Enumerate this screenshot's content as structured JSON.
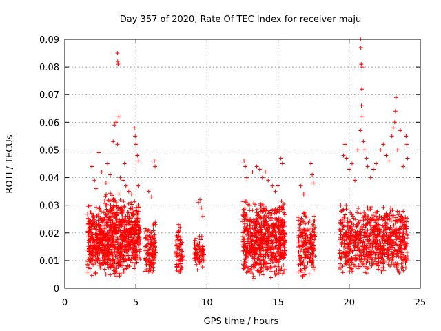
{
  "chart_data": {
    "type": "scatter",
    "title": "Day 357 of 2020, Rate Of TEC Index for receiver maju",
    "xlabel": "GPS time / hours",
    "ylabel": "ROTI / TECUs",
    "xlim": [
      0,
      25
    ],
    "ylim": [
      0,
      0.09
    ],
    "xticks": [
      0,
      5,
      10,
      15,
      20,
      25
    ],
    "yticks": [
      0,
      0.01,
      0.02,
      0.03,
      0.04,
      0.05,
      0.06,
      0.07,
      0.08,
      0.09
    ],
    "xtick_labels": [
      "0",
      "5",
      "10",
      "15",
      "20",
      "25"
    ],
    "ytick_labels": [
      "0",
      "0.01",
      "0.02",
      "0.03",
      "0.04",
      "0.05",
      "0.06",
      "0.07",
      "0.08",
      "0.09"
    ],
    "grid": true,
    "marker": "+",
    "marker_color": "#ff0000",
    "clusters": [
      {
        "x_range": [
          1.6,
          2.8
        ],
        "y_range": [
          0.004,
          0.03
        ],
        "count": 300
      },
      {
        "x_range": [
          2.8,
          4.2
        ],
        "y_range": [
          0.003,
          0.035
        ],
        "count": 400
      },
      {
        "x_range": [
          4.2,
          5.3
        ],
        "y_range": [
          0.005,
          0.032
        ],
        "count": 250
      },
      {
        "x_range": [
          5.6,
          6.4
        ],
        "y_range": [
          0.003,
          0.025
        ],
        "count": 120
      },
      {
        "x_range": [
          7.8,
          8.3
        ],
        "y_range": [
          0.003,
          0.022
        ],
        "count": 60
      },
      {
        "x_range": [
          9.1,
          9.8
        ],
        "y_range": [
          0.006,
          0.02
        ],
        "count": 70
      },
      {
        "x_range": [
          12.5,
          15.5
        ],
        "y_range": [
          0.003,
          0.032
        ],
        "count": 700
      },
      {
        "x_range": [
          16.4,
          17.6
        ],
        "y_range": [
          0.003,
          0.028
        ],
        "count": 200
      },
      {
        "x_range": [
          19.3,
          24.1
        ],
        "y_range": [
          0.004,
          0.03
        ],
        "count": 800
      }
    ],
    "peaks": [
      {
        "x": 1.9,
        "y": 0.044
      },
      {
        "x": 2.1,
        "y": 0.039
      },
      {
        "x": 2.2,
        "y": 0.036
      },
      {
        "x": 2.4,
        "y": 0.049
      },
      {
        "x": 2.6,
        "y": 0.042
      },
      {
        "x": 2.9,
        "y": 0.038
      },
      {
        "x": 3.0,
        "y": 0.045
      },
      {
        "x": 3.2,
        "y": 0.041
      },
      {
        "x": 3.4,
        "y": 0.053
      },
      {
        "x": 3.5,
        "y": 0.059
      },
      {
        "x": 3.6,
        "y": 0.06
      },
      {
        "x": 3.7,
        "y": 0.085
      },
      {
        "x": 3.72,
        "y": 0.082
      },
      {
        "x": 3.75,
        "y": 0.081
      },
      {
        "x": 3.8,
        "y": 0.062
      },
      {
        "x": 3.7,
        "y": 0.052
      },
      {
        "x": 3.9,
        "y": 0.04
      },
      {
        "x": 4.1,
        "y": 0.039
      },
      {
        "x": 4.2,
        "y": 0.045
      },
      {
        "x": 4.3,
        "y": 0.037
      },
      {
        "x": 4.5,
        "y": 0.035
      },
      {
        "x": 4.7,
        "y": 0.034
      },
      {
        "x": 4.9,
        "y": 0.058
      },
      {
        "x": 4.95,
        "y": 0.055
      },
      {
        "x": 5.0,
        "y": 0.052
      },
      {
        "x": 5.1,
        "y": 0.048
      },
      {
        "x": 5.2,
        "y": 0.046
      },
      {
        "x": 5.15,
        "y": 0.037
      },
      {
        "x": 5.9,
        "y": 0.035
      },
      {
        "x": 6.1,
        "y": 0.033
      },
      {
        "x": 6.3,
        "y": 0.046
      },
      {
        "x": 6.35,
        "y": 0.044
      },
      {
        "x": 8.0,
        "y": 0.023
      },
      {
        "x": 8.1,
        "y": 0.022
      },
      {
        "x": 9.4,
        "y": 0.031
      },
      {
        "x": 9.5,
        "y": 0.032
      },
      {
        "x": 9.6,
        "y": 0.029
      },
      {
        "x": 9.7,
        "y": 0.026
      },
      {
        "x": 12.6,
        "y": 0.046
      },
      {
        "x": 12.7,
        "y": 0.044
      },
      {
        "x": 12.8,
        "y": 0.04
      },
      {
        "x": 13.2,
        "y": 0.042
      },
      {
        "x": 13.5,
        "y": 0.044
      },
      {
        "x": 13.7,
        "y": 0.043
      },
      {
        "x": 13.9,
        "y": 0.04
      },
      {
        "x": 14.1,
        "y": 0.042
      },
      {
        "x": 14.3,
        "y": 0.039
      },
      {
        "x": 14.6,
        "y": 0.037
      },
      {
        "x": 14.8,
        "y": 0.035
      },
      {
        "x": 15.0,
        "y": 0.037
      },
      {
        "x": 15.2,
        "y": 0.047
      },
      {
        "x": 15.3,
        "y": 0.045
      },
      {
        "x": 16.6,
        "y": 0.037
      },
      {
        "x": 16.8,
        "y": 0.034
      },
      {
        "x": 17.3,
        "y": 0.045
      },
      {
        "x": 17.4,
        "y": 0.041
      },
      {
        "x": 17.5,
        "y": 0.038
      },
      {
        "x": 19.4,
        "y": 0.03
      },
      {
        "x": 19.6,
        "y": 0.048
      },
      {
        "x": 19.7,
        "y": 0.052
      },
      {
        "x": 19.8,
        "y": 0.047
      },
      {
        "x": 20.0,
        "y": 0.043
      },
      {
        "x": 20.2,
        "y": 0.045
      },
      {
        "x": 20.4,
        "y": 0.039
      },
      {
        "x": 20.6,
        "y": 0.05
      },
      {
        "x": 20.8,
        "y": 0.09
      },
      {
        "x": 20.82,
        "y": 0.087
      },
      {
        "x": 20.85,
        "y": 0.081
      },
      {
        "x": 20.9,
        "y": 0.08
      },
      {
        "x": 20.88,
        "y": 0.072
      },
      {
        "x": 20.86,
        "y": 0.066
      },
      {
        "x": 20.9,
        "y": 0.062
      },
      {
        "x": 20.8,
        "y": 0.057
      },
      {
        "x": 21.0,
        "y": 0.053
      },
      {
        "x": 21.1,
        "y": 0.05
      },
      {
        "x": 21.2,
        "y": 0.047
      },
      {
        "x": 21.3,
        "y": 0.044
      },
      {
        "x": 21.5,
        "y": 0.04
      },
      {
        "x": 21.7,
        "y": 0.043
      },
      {
        "x": 21.9,
        "y": 0.045
      },
      {
        "x": 22.2,
        "y": 0.05
      },
      {
        "x": 22.4,
        "y": 0.052
      },
      {
        "x": 22.6,
        "y": 0.048
      },
      {
        "x": 22.8,
        "y": 0.046
      },
      {
        "x": 23.0,
        "y": 0.055
      },
      {
        "x": 23.1,
        "y": 0.058
      },
      {
        "x": 23.2,
        "y": 0.06
      },
      {
        "x": 23.25,
        "y": 0.064
      },
      {
        "x": 23.3,
        "y": 0.069
      },
      {
        "x": 23.4,
        "y": 0.05
      },
      {
        "x": 23.6,
        "y": 0.057
      },
      {
        "x": 23.8,
        "y": 0.044
      },
      {
        "x": 24.0,
        "y": 0.055
      },
      {
        "x": 24.05,
        "y": 0.052
      },
      {
        "x": 24.1,
        "y": 0.047
      }
    ]
  }
}
